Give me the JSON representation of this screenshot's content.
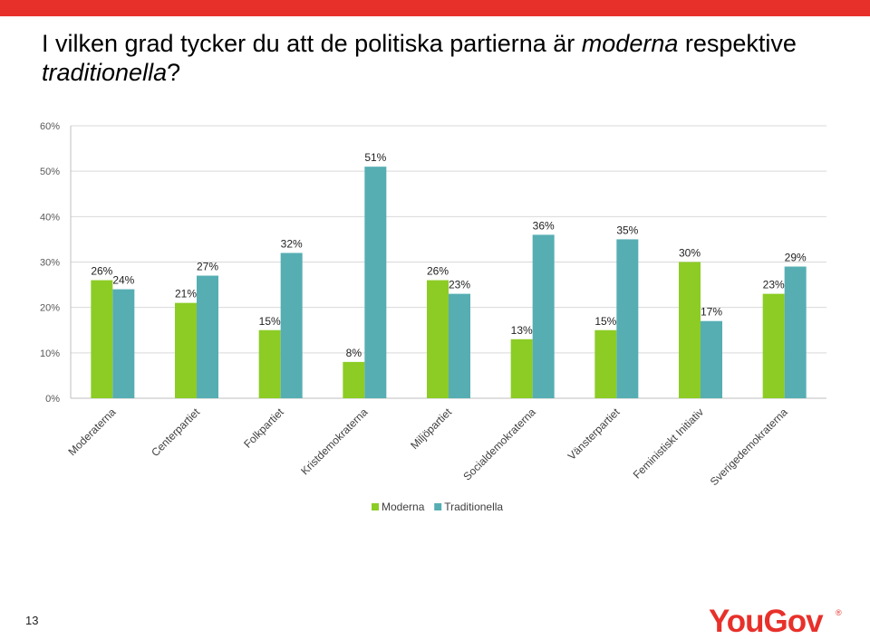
{
  "header": {
    "accent_color": "#e8302a"
  },
  "title": {
    "part1": "I vilken grad tycker du att de politiska partierna är ",
    "em1": "moderna",
    "part2": " respektive ",
    "em2": "traditionella",
    "part3": "?"
  },
  "page_number": "13",
  "logo": {
    "text": "YouGov",
    "mark": "®",
    "color": "#e8302a"
  },
  "chart_data": {
    "type": "bar",
    "ylim": [
      0,
      60
    ],
    "yticks": [
      0,
      10,
      20,
      30,
      40,
      50,
      60
    ],
    "ytick_format": "%",
    "grid": true,
    "legend_position": "bottom",
    "categories": [
      "Moderaterna",
      "Centerpartiet",
      "Folkpartiet",
      "Kristdemokraterna",
      "Miljöpartiet",
      "Socialdemokraterna",
      "Vänsterpartiet",
      "Feministiskt Initiativ",
      "Sverigedemokraterna"
    ],
    "series": [
      {
        "name": "Moderna",
        "color": "#8ccc25",
        "values": [
          26,
          21,
          15,
          8,
          26,
          13,
          15,
          30,
          23
        ]
      },
      {
        "name": "Traditionella",
        "color": "#56aeb3",
        "values": [
          24,
          27,
          32,
          51,
          23,
          36,
          35,
          17,
          29
        ]
      }
    ]
  }
}
